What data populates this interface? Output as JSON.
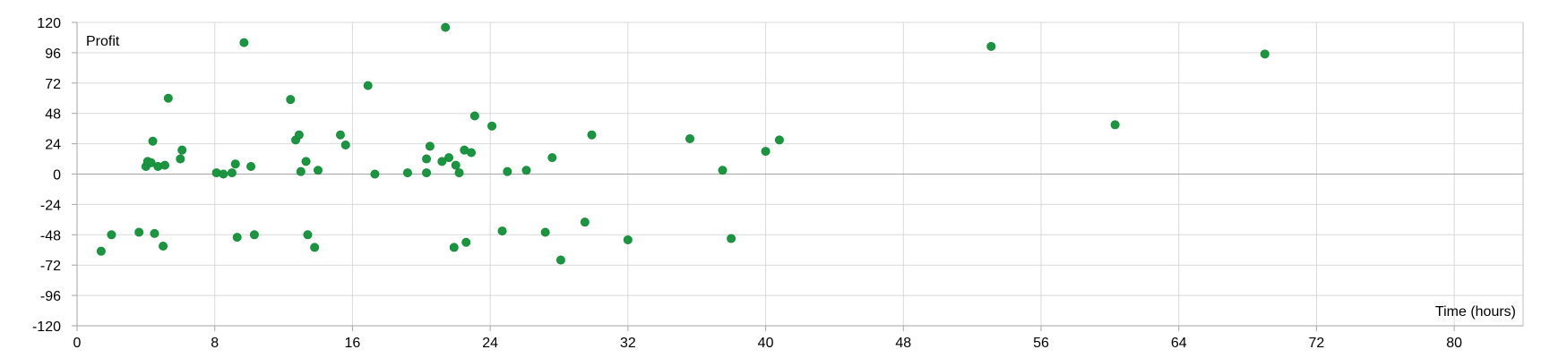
{
  "chart_data": {
    "type": "scatter",
    "title": "",
    "xlabel": "Time (hours)",
    "ylabel": "Profit",
    "xlim": [
      0,
      84
    ],
    "ylim": [
      -120,
      120
    ],
    "x_ticks": [
      0,
      8,
      16,
      24,
      32,
      40,
      48,
      56,
      64,
      72,
      80
    ],
    "y_ticks": [
      120,
      96,
      72,
      48,
      24,
      0,
      -24,
      -48,
      -72,
      -96,
      -120
    ],
    "grid": true,
    "legend": "none",
    "colors": {
      "marker": "#1a9641",
      "grid": "#d9d9d9",
      "axis": "#a6a6a6",
      "zero_line": "#a6a6a6"
    },
    "series": [
      {
        "points": [
          [
            1.4,
            -61
          ],
          [
            2.0,
            -48
          ],
          [
            3.6,
            -46
          ],
          [
            4.0,
            6
          ],
          [
            4.1,
            10
          ],
          [
            4.3,
            9
          ],
          [
            4.4,
            26
          ],
          [
            4.5,
            -47
          ],
          [
            4.7,
            6
          ],
          [
            5.0,
            -57
          ],
          [
            5.1,
            7
          ],
          [
            5.3,
            60
          ],
          [
            6.0,
            12
          ],
          [
            6.1,
            19
          ],
          [
            8.1,
            1
          ],
          [
            8.5,
            0
          ],
          [
            9.0,
            1
          ],
          [
            9.2,
            8
          ],
          [
            9.3,
            -50
          ],
          [
            9.7,
            104
          ],
          [
            10.1,
            6
          ],
          [
            10.3,
            -48
          ],
          [
            12.4,
            59
          ],
          [
            12.7,
            27
          ],
          [
            12.9,
            31
          ],
          [
            13.0,
            2
          ],
          [
            13.3,
            10
          ],
          [
            13.4,
            -48
          ],
          [
            13.8,
            -58
          ],
          [
            14.0,
            3
          ],
          [
            15.3,
            31
          ],
          [
            15.6,
            23
          ],
          [
            16.9,
            70
          ],
          [
            17.3,
            0
          ],
          [
            19.2,
            1
          ],
          [
            20.3,
            1
          ],
          [
            20.3,
            12
          ],
          [
            20.5,
            22
          ],
          [
            21.2,
            10
          ],
          [
            21.4,
            116
          ],
          [
            21.6,
            13
          ],
          [
            21.9,
            -58
          ],
          [
            22.0,
            7
          ],
          [
            22.2,
            1
          ],
          [
            22.5,
            19
          ],
          [
            22.6,
            -54
          ],
          [
            22.9,
            17
          ],
          [
            23.1,
            46
          ],
          [
            24.1,
            38
          ],
          [
            24.7,
            -45
          ],
          [
            25.0,
            2
          ],
          [
            26.1,
            3
          ],
          [
            27.2,
            -46
          ],
          [
            27.6,
            13
          ],
          [
            28.1,
            -68
          ],
          [
            29.5,
            -38
          ],
          [
            29.9,
            31
          ],
          [
            32.0,
            -52
          ],
          [
            35.6,
            28
          ],
          [
            37.5,
            3
          ],
          [
            38.0,
            -51
          ],
          [
            40.0,
            18
          ],
          [
            40.8,
            27
          ],
          [
            53.1,
            101
          ],
          [
            60.3,
            39
          ],
          [
            69.0,
            95
          ]
        ]
      }
    ]
  }
}
